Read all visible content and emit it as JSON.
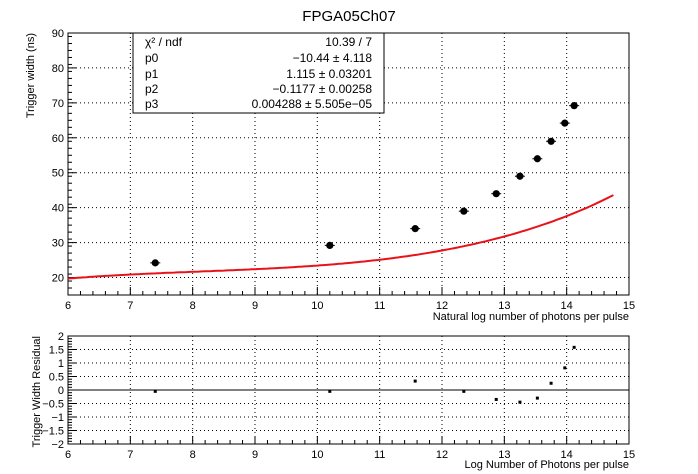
{
  "chart_data": [
    {
      "type": "scatter",
      "title": "FPGA05Ch07",
      "xlabel": "Natural log number of photons per pulse",
      "ylabel": "Trigger width (ns)",
      "xlim": [
        6,
        15
      ],
      "ylim": [
        15,
        90
      ],
      "xticks": [
        "6",
        "7",
        "8",
        "9",
        "10",
        "11",
        "12",
        "13",
        "14",
        "15"
      ],
      "yticks": [
        "20",
        "30",
        "40",
        "50",
        "60",
        "70",
        "80",
        "90"
      ],
      "grid": true,
      "series": [
        {
          "x": [
            7.4,
            10.2,
            11.57,
            12.35,
            12.87,
            13.25,
            13.53,
            13.75,
            13.97,
            14.12
          ],
          "y": [
            24.2,
            29.2,
            34.0,
            39.0,
            44.0,
            49.0,
            54.0,
            59.0,
            64.2,
            69.2
          ],
          "color": "#000000"
        }
      ],
      "fit": {
        "color": "#e8131a",
        "params": {
          "p0": -10.44,
          "p1": 1.115,
          "p2": -0.1177,
          "p3": 0.004288
        },
        "stats_box": [
          {
            "label": "χ² / ndf",
            "value": "10.39 / 7"
          },
          {
            "label": "p0",
            "value": "−10.44 ± 4.118"
          },
          {
            "label": "p1",
            "value": "1.115 ± 0.03201"
          },
          {
            "label": "p2",
            "value": "−0.1177 ± 0.00258"
          },
          {
            "label": "p3",
            "value": "0.004288 ± 5.505e−05"
          }
        ]
      }
    },
    {
      "type": "scatter",
      "title": "",
      "xlabel": "Log Number of Photons per pulse",
      "ylabel": "Trigger Width Residual",
      "xlim": [
        6,
        15
      ],
      "ylim": [
        -2,
        2
      ],
      "xticks": [
        "6",
        "7",
        "8",
        "9",
        "10",
        "11",
        "12",
        "13",
        "14",
        "15"
      ],
      "yticks": [
        "−2",
        "−1.5",
        "−1",
        "−0.5",
        "0",
        "0.5",
        "1",
        "1.5",
        "2"
      ],
      "grid": true,
      "series": [
        {
          "x": [
            7.4,
            10.2,
            11.57,
            12.35,
            12.87,
            13.25,
            13.53,
            13.75,
            13.97,
            14.12
          ],
          "y": [
            -0.05,
            -0.05,
            0.33,
            -0.05,
            -0.35,
            -0.45,
            -0.3,
            0.25,
            0.82,
            1.58
          ],
          "color": "#000000"
        }
      ]
    }
  ]
}
